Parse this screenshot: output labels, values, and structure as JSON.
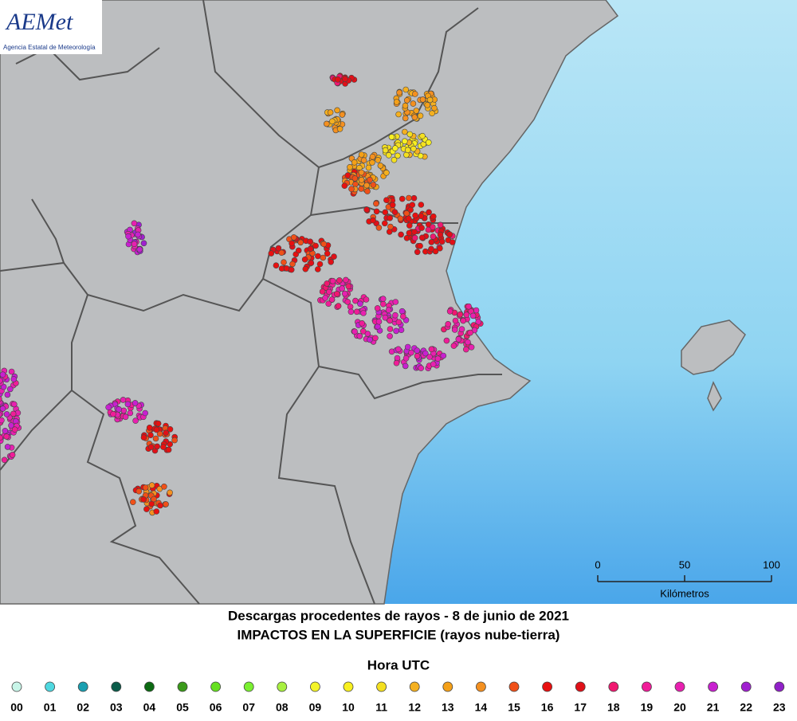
{
  "logo": {
    "name": "AEMet",
    "subtitle": "Agencia Estatal de Meteorología"
  },
  "scale": {
    "ticks": [
      0,
      50,
      100
    ],
    "unit": "Kilómetros"
  },
  "title": "Descargas procedentes de rayos - 8 de junio de 2021",
  "subtitle": "IMPACTOS EN LA SUPERFICIE (rayos nube-tierra)",
  "legend": {
    "title": "Hora UTC",
    "items": [
      {
        "label": "00",
        "color": "#c8f5e8"
      },
      {
        "label": "01",
        "color": "#4fd8e0"
      },
      {
        "label": "02",
        "color": "#1a9fb0"
      },
      {
        "label": "03",
        "color": "#0b5c4a"
      },
      {
        "label": "04",
        "color": "#0c6a12"
      },
      {
        "label": "05",
        "color": "#3a9a1a"
      },
      {
        "label": "06",
        "color": "#66e020"
      },
      {
        "label": "07",
        "color": "#7af030"
      },
      {
        "label": "08",
        "color": "#a8f040"
      },
      {
        "label": "09",
        "color": "#f4f428"
      },
      {
        "label": "10",
        "color": "#f8f020"
      },
      {
        "label": "11",
        "color": "#f4e020"
      },
      {
        "label": "12",
        "color": "#f4b020"
      },
      {
        "label": "13",
        "color": "#f4a018"
      },
      {
        "label": "14",
        "color": "#f49020"
      },
      {
        "label": "15",
        "color": "#f05018"
      },
      {
        "label": "16",
        "color": "#e81010"
      },
      {
        "label": "17",
        "color": "#e01018"
      },
      {
        "label": "18",
        "color": "#f01870"
      },
      {
        "label": "19",
        "color": "#f01c98"
      },
      {
        "label": "20",
        "color": "#e820b0"
      },
      {
        "label": "21",
        "color": "#c820d0"
      },
      {
        "label": "22",
        "color": "#a020d0"
      },
      {
        "label": "23",
        "color": "#9020c8"
      }
    ]
  }
}
